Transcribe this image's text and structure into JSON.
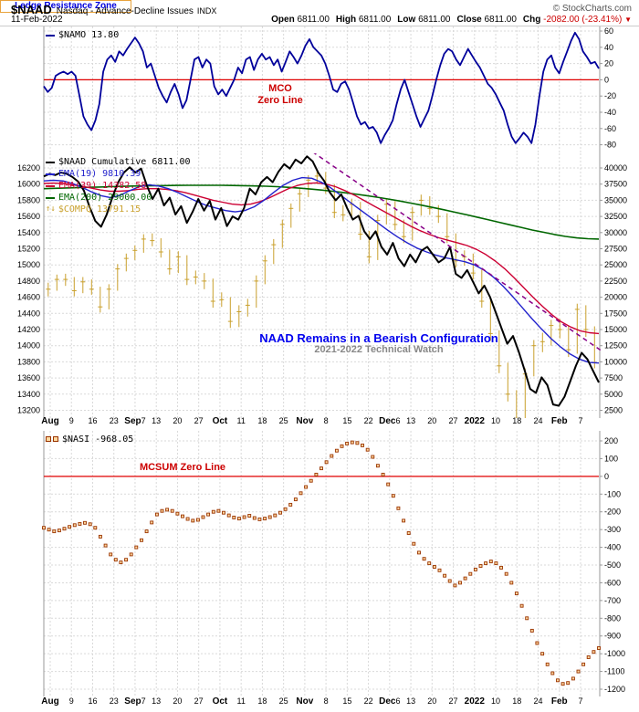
{
  "header": {
    "symbol": "$NAAD",
    "title": "Nasdaq - Advance-Decline Issues",
    "exchange": "INDX",
    "copyright": "© StockCharts.com",
    "date": "11-Feb-2022",
    "quote": {
      "open_l": "Open",
      "open_v": "6811.00",
      "high_l": "High",
      "high_v": "6811.00",
      "low_l": "Low",
      "low_v": "6811.00",
      "close_l": "Close",
      "close_v": "6811.00",
      "chg_l": "Chg",
      "chg_v": "-2082.00 (-23.41%)",
      "chg_icon": "▼"
    }
  },
  "colors": {
    "grid": "#D9D9D9",
    "axis": "#999999",
    "zero": "#E00000",
    "navy": "#00009B",
    "black": "#000000",
    "ema19": "#2222CC",
    "ema39": "#CC0033",
    "ema200": "#006600",
    "gold": "#C9A02C",
    "nasi": "#993300",
    "nasiFill": "#FFD9A0",
    "trend": "#880088"
  },
  "xaxis": {
    "labels": [
      {
        "t": "Aug",
        "b": true
      },
      {
        "t": "9"
      },
      {
        "t": "16"
      },
      {
        "t": "23"
      },
      {
        "t": "Sep",
        "b": true,
        "s": "7"
      },
      {
        "t": "13"
      },
      {
        "t": "20"
      },
      {
        "t": "27"
      },
      {
        "t": "Oct",
        "b": true
      },
      {
        "t": "11"
      },
      {
        "t": "18"
      },
      {
        "t": "25"
      },
      {
        "t": "Nov",
        "b": true
      },
      {
        "t": "8"
      },
      {
        "t": "15"
      },
      {
        "t": "22"
      },
      {
        "t": "Dec",
        "b": true,
        "s": "6"
      },
      {
        "t": "13"
      },
      {
        "t": "20"
      },
      {
        "t": "27"
      },
      {
        "t": "2022",
        "b": true
      },
      {
        "t": "10"
      },
      {
        "t": "18"
      },
      {
        "t": "24"
      },
      {
        "t": "Feb",
        "b": true
      },
      {
        "t": "7"
      }
    ]
  },
  "chart_data": [
    {
      "type": "line",
      "title": "NASDAQ McClellan Oscillator",
      "legend": "$NAMO 13.80",
      "yticks": [
        60,
        40,
        20,
        0,
        -20,
        -40,
        -60,
        -80
      ],
      "ylim": [
        -95,
        70
      ],
      "zero_line": 0,
      "annotation": {
        "line1": "MCO",
        "line2": "Zero Line"
      },
      "series": [
        {
          "name": "$NAMO",
          "color": "#00009B",
          "last": 13.8,
          "values": [
            -8,
            -15,
            -10,
            5,
            8,
            10,
            7,
            10,
            5,
            -20,
            -45,
            -55,
            -62,
            -50,
            -30,
            10,
            25,
            30,
            22,
            35,
            30,
            38,
            45,
            52,
            45,
            35,
            15,
            20,
            5,
            -10,
            -20,
            -28,
            -15,
            -5,
            -18,
            -35,
            -25,
            0,
            25,
            28,
            15,
            25,
            20,
            -8,
            -18,
            -12,
            -20,
            -10,
            0,
            15,
            8,
            25,
            28,
            12,
            25,
            32,
            25,
            28,
            18,
            25,
            10,
            22,
            35,
            28,
            20,
            30,
            42,
            50,
            40,
            35,
            30,
            20,
            5,
            -12,
            -15,
            -5,
            -2,
            -12,
            -28,
            -45,
            -55,
            -52,
            -60,
            -58,
            -65,
            -78,
            -68,
            -60,
            -50,
            -30,
            -12,
            0,
            -15,
            -30,
            -45,
            -58,
            -48,
            -38,
            -20,
            0,
            18,
            32,
            38,
            35,
            25,
            18,
            28,
            38,
            30,
            22,
            15,
            5,
            -5,
            -10,
            -18,
            -28,
            -38,
            -55,
            -70,
            -78,
            -72,
            -65,
            -70,
            -78,
            -55,
            -20,
            10,
            25,
            30,
            15,
            8,
            22,
            35,
            48,
            58,
            50,
            35,
            28,
            20,
            22,
            13.8
          ]
        }
      ]
    },
    {
      "type": "mixed",
      "title": "NAAD Cumulative with EMAs and $COMPQ",
      "legend_items": [
        {
          "label": "$NAAD Cumulative 6811.00",
          "color": "#000000",
          "marker": "dash"
        },
        {
          "label": "EMA(19) 9810.39",
          "color": "#2222CC",
          "marker": "dash"
        },
        {
          "label": "EMA(39) 14382.58",
          "color": "#CC0033",
          "marker": "dash"
        },
        {
          "label": "EMA(200) 29000.00",
          "color": "#006600",
          "marker": "dash"
        },
        {
          "label": "$COMPQ 13791.15",
          "color": "#C9A02C",
          "marker": "↑↓"
        }
      ],
      "left_axis": {
        "ticks": [
          16200,
          16000,
          15800,
          15600,
          15400,
          15200,
          15000,
          14800,
          14600,
          14400,
          14200,
          14000,
          13800,
          13600,
          13400,
          13200
        ]
      },
      "right_axis": {
        "ticks": [
          40000,
          37500,
          35000,
          32500,
          30000,
          27500,
          25000,
          22500,
          20000,
          17500,
          15000,
          12500,
          10000,
          7500,
          5000,
          2500
        ]
      },
      "annotation": {
        "title": "NAAD Remains in a Bearish Configuration",
        "subtitle": "2021-2022 Technical Watch"
      },
      "trendline": {
        "x1": 0.484,
        "v1": 42500,
        "x2": 1.0,
        "v2": 11800,
        "color": "#880088"
      },
      "series": {
        "naad": {
          "name": "$NAAD Cumulative",
          "color": "#000000",
          "last": 6811.0,
          "values": [
            38700,
            39100,
            38900,
            39300,
            39100,
            38600,
            37900,
            36500,
            34000,
            31800,
            30900,
            32800,
            35500,
            37800,
            39300,
            40100,
            39300,
            39900,
            37300,
            35200,
            36800,
            34200,
            35400,
            32800,
            34100,
            31500,
            33200,
            35200,
            33400,
            34900,
            32000,
            33800,
            31000,
            32500,
            32000,
            33800,
            36800,
            35900,
            37800,
            38600,
            37800,
            39400,
            40600,
            39900,
            41300,
            40700,
            41800,
            41000,
            39200,
            38000,
            36200,
            35000,
            35900,
            33800,
            32000,
            32600,
            30200,
            29000,
            30200,
            27800,
            26600,
            28400,
            26000,
            24800,
            26600,
            25400,
            27200,
            27800,
            26600,
            25400,
            26000,
            27800,
            23600,
            23000,
            24200,
            22400,
            20600,
            21800,
            20000,
            17600,
            15200,
            12800,
            14000,
            11600,
            8800,
            5800,
            5200,
            7600,
            6400,
            3400,
            3200,
            4600,
            7000,
            9400,
            11400,
            10400,
            8600,
            6811
          ]
        },
        "ema19": {
          "name": "EMA(19)",
          "color": "#2222CC",
          "last": 9810.39,
          "values": [
            38000,
            38100,
            38000,
            37600,
            37000,
            36300,
            35700,
            35400,
            35800,
            36500,
            37100,
            37400,
            37200,
            36800,
            36200,
            35500,
            34800,
            34200,
            33800,
            33400,
            33200,
            33400,
            34000,
            35000,
            36200,
            37300,
            38100,
            38500,
            38400,
            37800,
            36900,
            35800,
            34700,
            33600,
            32500,
            31400,
            30300,
            29300,
            28400,
            27600,
            27000,
            26500,
            26100,
            25800,
            25500,
            25000,
            24200,
            23100,
            21700,
            20100,
            18400,
            16700,
            15100,
            13600,
            12300,
            11200,
            10400,
            9900,
            9810
          ]
        },
        "ema39": {
          "name": "EMA(39)",
          "color": "#CC0033",
          "last": 14382.58,
          "values": [
            37600,
            37650,
            37600,
            37400,
            37200,
            36900,
            36600,
            36400,
            36400,
            36500,
            36700,
            36800,
            36800,
            36700,
            36500,
            36200,
            35800,
            35400,
            35000,
            34700,
            34400,
            34300,
            34400,
            34800,
            35400,
            36100,
            36800,
            37300,
            37600,
            37700,
            37500,
            37100,
            36500,
            35800,
            35000,
            34200,
            33400,
            32600,
            31800,
            31000,
            30300,
            29700,
            29200,
            28800,
            28400,
            28000,
            27400,
            26600,
            25600,
            24400,
            23000,
            21500,
            20000,
            18600,
            17300,
            16200,
            15400,
            14800,
            14500,
            14382
          ]
        },
        "ema200": {
          "name": "EMA(200)",
          "color": "#006600",
          "last": 29000.0,
          "values": [
            36800,
            36850,
            36900,
            36950,
            37000,
            37050,
            37100,
            37150,
            37200,
            37230,
            37260,
            37280,
            37300,
            37310,
            37320,
            37320,
            37310,
            37290,
            37260,
            37220,
            37170,
            37100,
            37000,
            36880,
            36740,
            36580,
            36400,
            36200,
            35980,
            35740,
            35480,
            35200,
            34900,
            34580,
            34250,
            33900,
            33540,
            33170,
            32790,
            32400,
            32000,
            31600,
            31200,
            30800,
            30400,
            30050,
            29700,
            29400,
            29180,
            29050,
            29000
          ]
        },
        "compq": {
          "name": "$COMPQ",
          "color": "#C9A02C",
          "last": 13791.15,
          "high": [
            14780,
            14880,
            14890,
            14850,
            14850,
            14820,
            14730,
            14760,
            15010,
            15140,
            15240,
            15380,
            15390,
            15330,
            15190,
            15170,
            15120,
            14930,
            14900,
            14830,
            14660,
            14600,
            14500,
            14580,
            14870,
            15120,
            15320,
            15560,
            15760,
            15940,
            16110,
            16170,
            16150,
            16000,
            15740,
            15820,
            15780,
            15420,
            15620,
            15820,
            15790,
            15560,
            15720,
            15870,
            15850,
            15740,
            15640,
            15390,
            15180,
            15140,
            14940,
            14590,
            14190,
            13790,
            13450,
            13720,
            14070,
            14160,
            14320,
            14330,
            14250,
            14520,
            14500,
            14240
          ],
          "low": [
            14610,
            14680,
            14740,
            14610,
            14650,
            14630,
            14410,
            14450,
            14680,
            14920,
            15060,
            15150,
            15230,
            15090,
            14880,
            14900,
            14750,
            14760,
            14700,
            14470,
            14480,
            14220,
            14230,
            14360,
            14470,
            14760,
            15010,
            15210,
            15460,
            15660,
            15840,
            16000,
            15880,
            15580,
            15540,
            15570,
            15310,
            15020,
            15060,
            15500,
            15430,
            15270,
            15300,
            15610,
            15620,
            15520,
            15270,
            14970,
            14990,
            14820,
            14470,
            14060,
            13660,
            13310,
            13020,
            13060,
            13620,
            13920,
            14000,
            14090,
            13860,
            13900,
            14110,
            13720
          ],
          "close": [
            14700,
            14820,
            14820,
            14680,
            14790,
            14700,
            14480,
            14700,
            14950,
            15080,
            15180,
            15320,
            15300,
            15160,
            14950,
            15100,
            14820,
            14850,
            14800,
            14550,
            14570,
            14300,
            14420,
            14500,
            14800,
            15050,
            15250,
            15500,
            15700,
            15880,
            16050,
            16100,
            15950,
            15650,
            15620,
            15750,
            15380,
            15100,
            15550,
            15750,
            15500,
            15350,
            15650,
            15800,
            15700,
            15600,
            15350,
            15050,
            15100,
            14900,
            14550,
            14150,
            13750,
            13400,
            13100,
            13650,
            14000,
            14050,
            14250,
            14200,
            13950,
            14450,
            14200,
            13791
          ]
        }
      }
    },
    {
      "type": "scatter",
      "title": "NASDAQ McClellan Summation Index",
      "legend": "$NASI -968.05",
      "yticks": [
        200,
        100,
        0,
        -100,
        -200,
        -300,
        -400,
        -500,
        -600,
        -700,
        -800,
        -900,
        -1000,
        -1100,
        -1200
      ],
      "zero_label": "MCSUM Zero Line",
      "ledge_label": "Ledge Resistance Zone",
      "series": [
        {
          "name": "$NASI",
          "color": "#993300",
          "last": -968.05,
          "values": [
            -290,
            -300,
            -310,
            -305,
            -295,
            -285,
            -275,
            -268,
            -262,
            -270,
            -290,
            -340,
            -390,
            -440,
            -470,
            -485,
            -470,
            -440,
            -400,
            -360,
            -310,
            -260,
            -215,
            -195,
            -188,
            -195,
            -210,
            -225,
            -240,
            -250,
            -245,
            -230,
            -215,
            -200,
            -195,
            -205,
            -220,
            -232,
            -238,
            -230,
            -222,
            -235,
            -242,
            -238,
            -230,
            -220,
            -205,
            -185,
            -160,
            -130,
            -95,
            -60,
            -25,
            10,
            45,
            80,
            115,
            145,
            170,
            185,
            192,
            188,
            175,
            150,
            110,
            60,
            10,
            -45,
            -110,
            -180,
            -250,
            -320,
            -380,
            -430,
            -465,
            -490,
            -510,
            -530,
            -560,
            -590,
            -615,
            -600,
            -575,
            -550,
            -525,
            -505,
            -490,
            -480,
            -490,
            -515,
            -550,
            -600,
            -660,
            -730,
            -800,
            -870,
            -940,
            -1000,
            -1060,
            -1110,
            -1150,
            -1170,
            -1165,
            -1140,
            -1100,
            -1060,
            -1020,
            -990,
            -968.05
          ]
        }
      ]
    }
  ]
}
